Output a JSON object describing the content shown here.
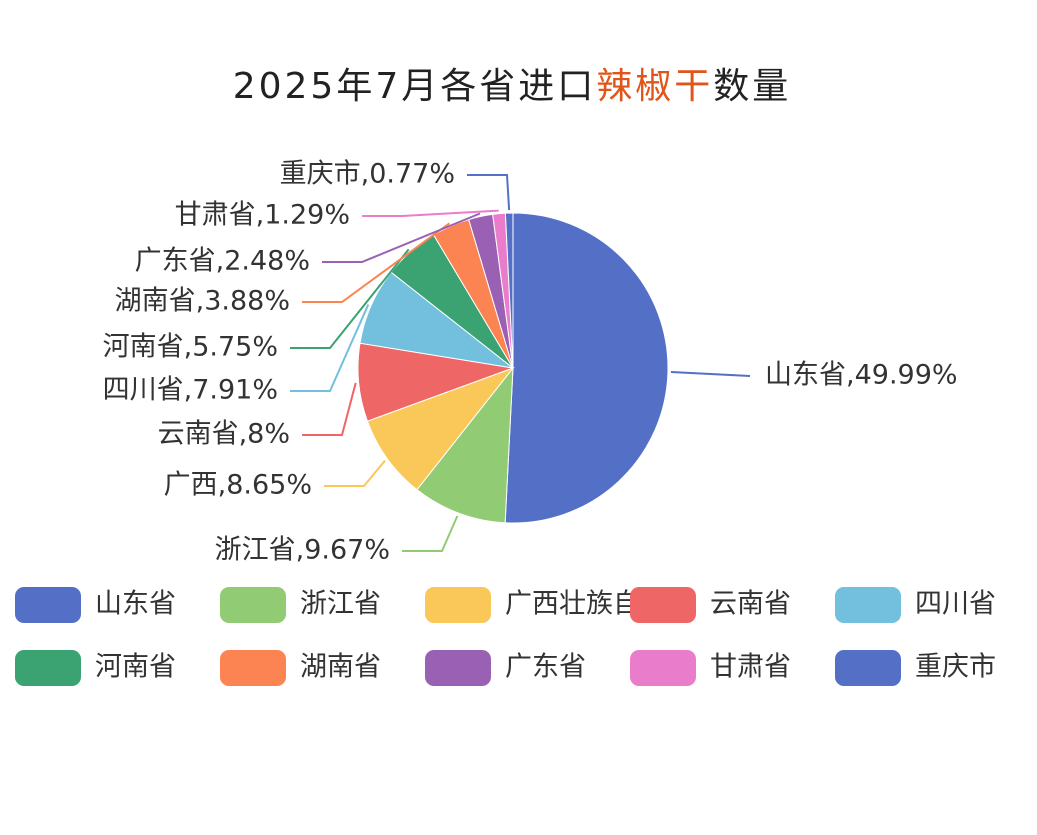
{
  "chart_data": {
    "type": "pie",
    "title_parts": [
      "2025年7月各省进口",
      "辣椒干",
      "数量"
    ],
    "categories": [
      "山东省",
      "浙江省",
      "广西壮族自治区",
      "云南省",
      "四川省",
      "河南省",
      "湖南省",
      "广东省",
      "甘肃省",
      "重庆市"
    ],
    "values": [
      49.99,
      9.67,
      8.65,
      8,
      7.91,
      5.75,
      3.88,
      2.48,
      1.29,
      0.77
    ],
    "value_labels": [
      "山东省,49.99%",
      "浙江省,9.67%",
      "广西,8.65%",
      "云南省,8%",
      "四川省,7.91%",
      "河南省,5.75%",
      "湖南省,3.88%",
      "广东省,2.48%",
      "甘肃省,1.29%",
      "重庆市,0.77%"
    ],
    "colors": [
      "#5470c6",
      "#91cc75",
      "#fac858",
      "#ee6666",
      "#73c0de",
      "#3ba272",
      "#fc8452",
      "#9a60b4",
      "#ea7ccc",
      "#5470c6"
    ]
  }
}
